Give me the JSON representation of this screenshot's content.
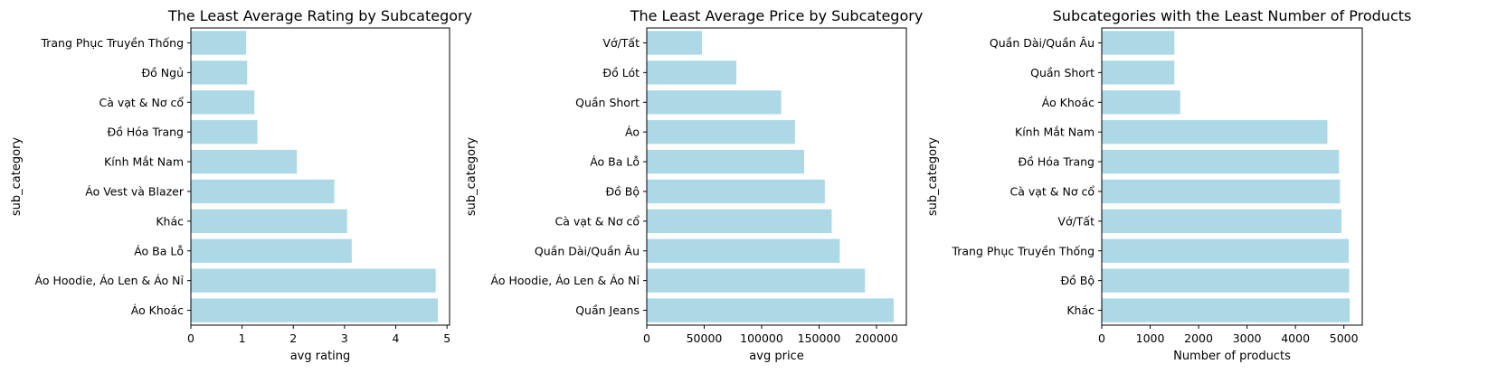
{
  "bar_color": "#add8e6",
  "chart_data": [
    {
      "type": "bar",
      "orientation": "horizontal",
      "title": "The Least Average Rating by Subcategory",
      "xlabel": "avg rating",
      "ylabel": "sub_category",
      "xlim": [
        0,
        5.05
      ],
      "xticks": [
        "0",
        "1",
        "2",
        "3",
        "4",
        "5"
      ],
      "grid": false,
      "categories": [
        "Trang Phục Truyền Thống",
        "Đồ Ngủ",
        "Cà vạt & Nơ cổ",
        "Đồ Hóa Trang",
        "Kính Mắt Nam",
        "Áo Vest và Blazer",
        "Khác",
        "Áo Ba Lỗ",
        "Áo Hoodie, Áo Len & Áo Nỉ",
        "Áo Khoác"
      ],
      "values": [
        1.08,
        1.1,
        1.24,
        1.3,
        2.07,
        2.8,
        3.05,
        3.14,
        4.78,
        4.82
      ]
    },
    {
      "type": "bar",
      "orientation": "horizontal",
      "title": "The Least Average Price by Subcategory",
      "xlabel": "avg price",
      "ylabel": "sub_category",
      "xlim": [
        0,
        226000
      ],
      "xticks": [
        "0",
        "50000",
        "100000",
        "150000",
        "200000"
      ],
      "grid": false,
      "categories": [
        "Vớ/Tất",
        "Đồ Lót",
        "Quần Short",
        "Áo",
        "Áo Ba Lỗ",
        "Đồ Bộ",
        "Cà vạt & Nơ cổ",
        "Quần Dài/Quần Âu",
        "Áo Hoodie, Áo Len & Áo Nỉ",
        "Quần Jeans"
      ],
      "values": [
        48000,
        78000,
        117000,
        129000,
        137000,
        155000,
        161000,
        168000,
        190000,
        215000
      ]
    },
    {
      "type": "bar",
      "orientation": "horizontal",
      "title": "Subcategories with the Least Number of Products",
      "xlabel": "Number of products",
      "ylabel": "sub_category",
      "xlim": [
        0,
        5380
      ],
      "xticks": [
        "0",
        "1000",
        "2000",
        "3000",
        "4000",
        "5000"
      ],
      "grid": false,
      "categories": [
        "Quần Dài/Quần Âu",
        "Quần Short",
        "Áo Khoác",
        "Kính Mắt Nam",
        "Đồ Hóa Trang",
        "Cà vạt & Nơ cổ",
        "Vớ/Tất",
        "Trang Phục Truyền Thống",
        "Đồ Bộ",
        "Khác"
      ],
      "values": [
        1500,
        1500,
        1620,
        4660,
        4900,
        4920,
        4950,
        5100,
        5110,
        5120
      ]
    }
  ]
}
